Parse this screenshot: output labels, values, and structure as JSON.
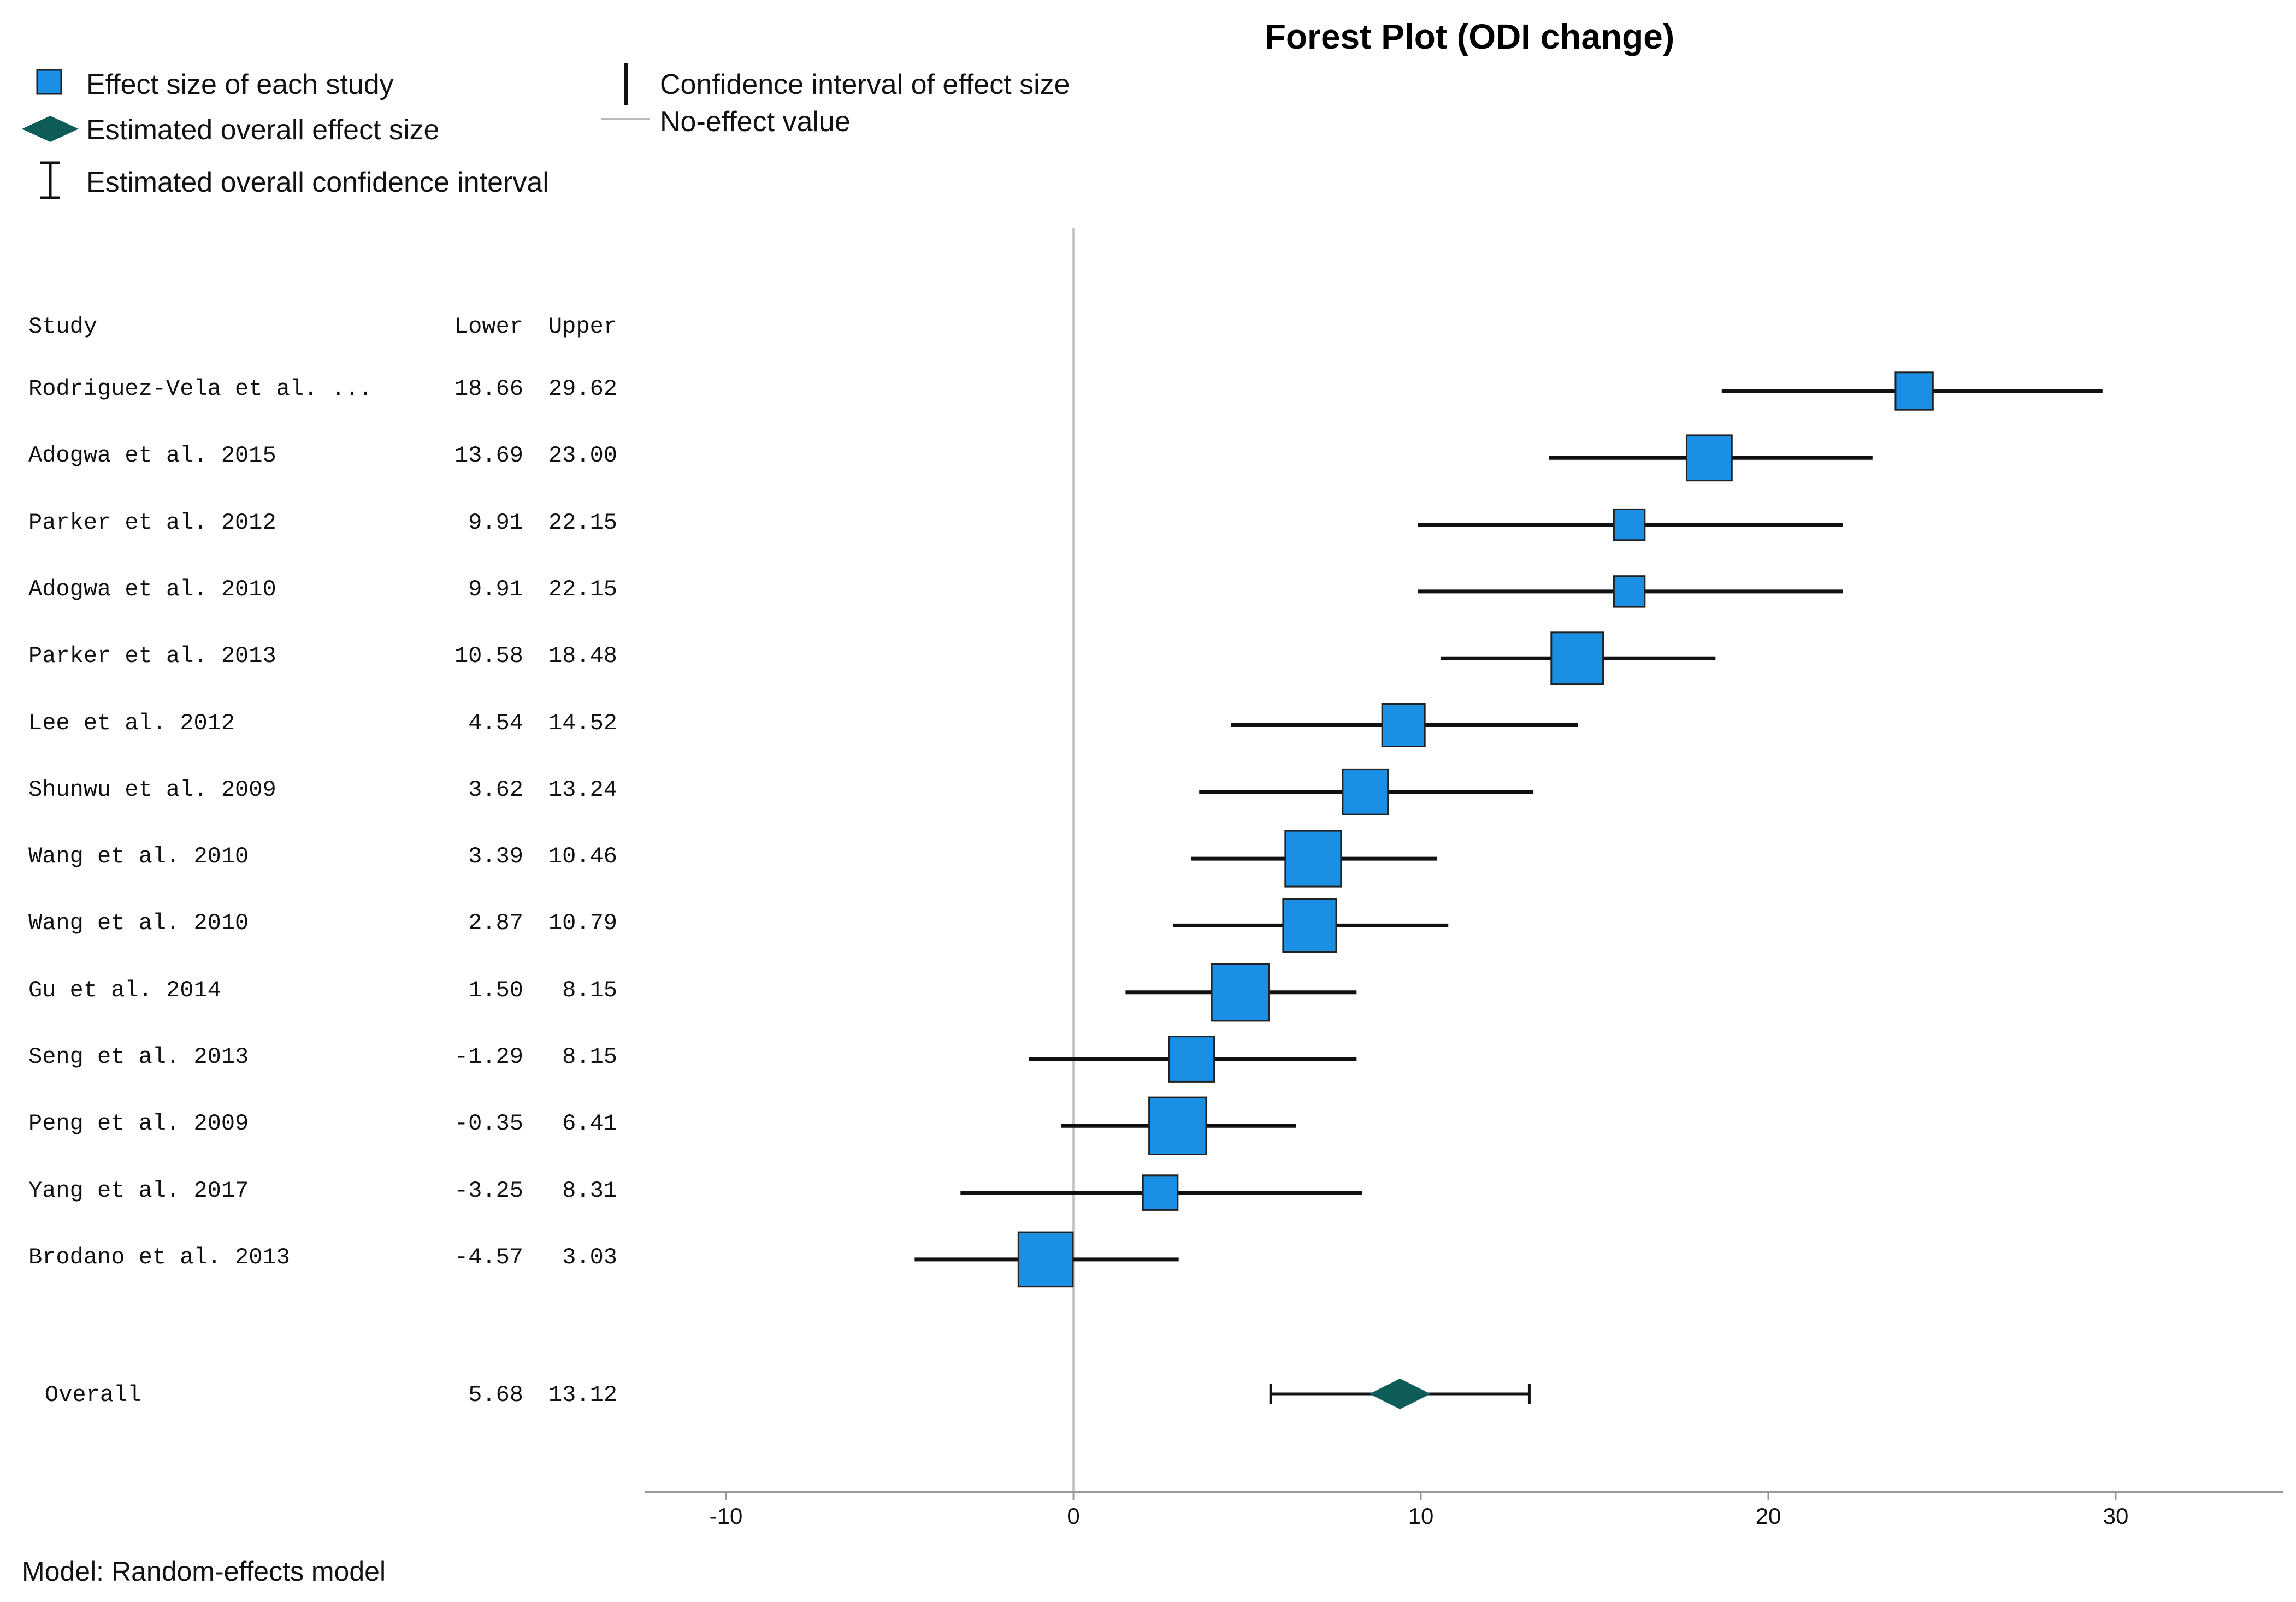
{
  "chart_data": {
    "type": "forest",
    "title": "Forest Plot (ODI change)",
    "legend": {
      "effect_size": "Effect size of each study",
      "overall_effect": "Estimated overall effect size",
      "overall_ci": "Estimated overall confidence interval",
      "ci": "Confidence interval of effect size",
      "no_effect": "No-effect value"
    },
    "columns": {
      "study": "Study",
      "lower": "Lower",
      "upper": "Upper"
    },
    "studies": [
      {
        "name": "Rodriguez-Vela et al. ...",
        "lower": "18.66",
        "upper": "29.62",
        "effect": 24.2,
        "weight": 0.8
      },
      {
        "name": "Adogwa et al. 2015",
        "lower": "13.69",
        "upper": "23.00",
        "effect": 18.3,
        "weight": 1.1
      },
      {
        "name": "Parker et al. 2012",
        "lower": "9.91",
        "upper": "22.15",
        "effect": 16.0,
        "weight": 0.55
      },
      {
        "name": "Adogwa et al. 2010",
        "lower": "9.91",
        "upper": "22.15",
        "effect": 16.0,
        "weight": 0.55
      },
      {
        "name": "Parker et al. 2013",
        "lower": "10.58",
        "upper": "18.48",
        "effect": 14.5,
        "weight": 1.35
      },
      {
        "name": "Lee et al. 2012",
        "lower": "4.54",
        "upper": "14.52",
        "effect": 9.5,
        "weight": 1.0
      },
      {
        "name": "Shunwu et al. 2009",
        "lower": "3.62",
        "upper": "13.24",
        "effect": 8.4,
        "weight": 1.1
      },
      {
        "name": "Wang et al. 2010",
        "lower": "3.39",
        "upper": "10.46",
        "effect": 6.9,
        "weight": 1.5
      },
      {
        "name": "Wang et al. 2010",
        "lower": "2.87",
        "upper": "10.79",
        "effect": 6.8,
        "weight": 1.4
      },
      {
        "name": "Gu et al. 2014",
        "lower": "1.50",
        "upper": "8.15",
        "effect": 4.8,
        "weight": 1.55
      },
      {
        "name": "Seng et al. 2013",
        "lower": "-1.29",
        "upper": "8.15",
        "effect": 3.4,
        "weight": 1.1
      },
      {
        "name": "Peng et al. 2009",
        "lower": "-0.35",
        "upper": "6.41",
        "effect": 3.0,
        "weight": 1.55
      },
      {
        "name": "Yang et al. 2017",
        "lower": "-3.25",
        "upper": "8.31",
        "effect": 2.5,
        "weight": 0.7
      },
      {
        "name": "Brodano et al. 2013",
        "lower": "-4.57",
        "upper": "3.03",
        "effect": -0.8,
        "weight": 1.45
      }
    ],
    "overall": {
      "name": "Overall",
      "lower": "5.68",
      "upper": "13.12",
      "effect": 9.4
    },
    "x_ticks": [
      -10,
      0,
      10,
      20,
      30
    ],
    "x_tick_labels": [
      "-10",
      "0",
      "10",
      "20",
      "30"
    ],
    "xlim": [
      -12.5,
      34.7
    ],
    "no_effect_value": 0,
    "model_note": "Model: Random-effects model"
  },
  "colors": {
    "study_box": "#1a8fe3",
    "overall_diamond": "#0d5c57",
    "line": "#111111",
    "reference_line": "#c8c8c8",
    "axis": "#999999"
  }
}
